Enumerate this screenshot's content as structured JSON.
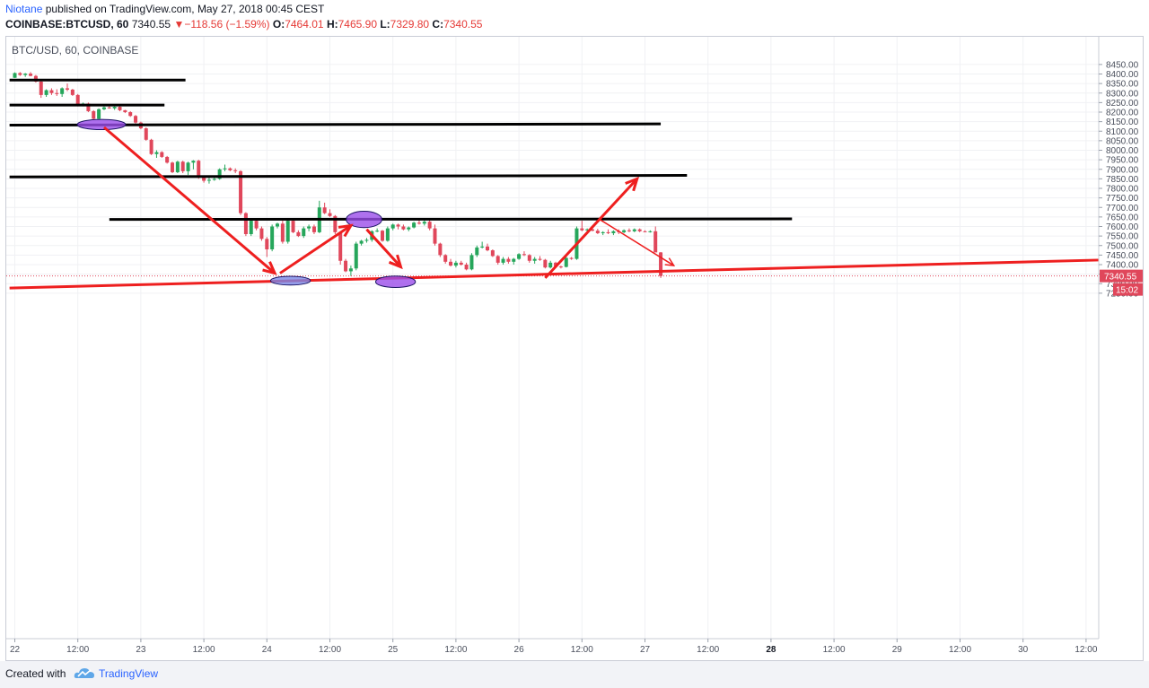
{
  "header": {
    "author": "Niotane",
    "published": "published on TradingView.com, May 27, 2018 00:45 CEST",
    "symbol": "COINBASE:BTCUSD, 60",
    "last": "7340.55",
    "change": "−118.56 (−1.59%)",
    "o_label": "O:",
    "o_value": "7464.01",
    "h_label": "H:",
    "h_value": "7465.90",
    "l_label": "L:",
    "l_value": "7329.80",
    "c_label": "C:",
    "c_value": "7340.55"
  },
  "legend": "BTC/USD, 60, COINBASE",
  "footer": {
    "created_with": "Created with",
    "brand": "TradingView"
  },
  "colors": {
    "up": "#26a65b",
    "down": "#e0475b",
    "drawing_red": "#ee1f1f",
    "hline": "#000000",
    "ellipse_purple": "#9b4dea",
    "ellipse_blue": "#7b87e6",
    "price_tag": "#e0475b"
  },
  "chart_data": {
    "type": "candlestick",
    "symbol": "BTC/USD",
    "interval": "60",
    "exchange": "COINBASE",
    "ylim": [
      7200,
      8470
    ],
    "y_ticks": [
      7250,
      7300,
      7350,
      7400,
      7450,
      7500,
      7550,
      7600,
      7650,
      7700,
      7750,
      7800,
      7850,
      7900,
      7950,
      8000,
      8050,
      8100,
      8150,
      8200,
      8250,
      8300,
      8350,
      8400,
      8450
    ],
    "y_tick_labels": [
      "7250.00",
      "7300.00",
      "7350.00",
      "7400.00",
      "7450.00",
      "7500.00",
      "7550.00",
      "7600.00",
      "7650.00",
      "7700.00",
      "7750.00",
      "7800.00",
      "7850.00",
      "7900.00",
      "7950.00",
      "8000.00",
      "8050.00",
      "8100.00",
      "8150.00",
      "8200.00",
      "8250.00",
      "8300.00",
      "8350.00",
      "8400.00",
      "8450.00"
    ],
    "x_ticks": [
      {
        "t": 0,
        "label": "22",
        "bold": false
      },
      {
        "t": 12,
        "label": "12:00",
        "bold": false
      },
      {
        "t": 24,
        "label": "23",
        "bold": false
      },
      {
        "t": 36,
        "label": "12:00",
        "bold": false
      },
      {
        "t": 48,
        "label": "24",
        "bold": false
      },
      {
        "t": 60,
        "label": "12:00",
        "bold": false
      },
      {
        "t": 72,
        "label": "25",
        "bold": false
      },
      {
        "t": 84,
        "label": "12:00",
        "bold": false
      },
      {
        "t": 96,
        "label": "26",
        "bold": false
      },
      {
        "t": 108,
        "label": "12:00",
        "bold": false
      },
      {
        "t": 120,
        "label": "27",
        "bold": false
      },
      {
        "t": 132,
        "label": "12:00",
        "bold": false
      },
      {
        "t": 144,
        "label": "28",
        "bold": true
      },
      {
        "t": 156,
        "label": "12:00",
        "bold": false
      },
      {
        "t": 168,
        "label": "29",
        "bold": false
      },
      {
        "t": 180,
        "label": "12:00",
        "bold": false
      },
      {
        "t": 192,
        "label": "30",
        "bold": false
      },
      {
        "t": 204,
        "label": "12:00",
        "bold": false
      }
    ],
    "x_range": [
      -1,
      208
    ],
    "candles": [
      [
        8380,
        8408,
        8380,
        8405
      ],
      [
        8405,
        8410,
        8390,
        8395
      ],
      [
        8395,
        8405,
        8385,
        8402
      ],
      [
        8402,
        8410,
        8388,
        8390
      ],
      [
        8390,
        8395,
        8355,
        8360
      ],
      [
        8360,
        8365,
        8275,
        8290
      ],
      [
        8290,
        8320,
        8280,
        8315
      ],
      [
        8315,
        8325,
        8290,
        8300
      ],
      [
        8300,
        8320,
        8285,
        8295
      ],
      [
        8295,
        8330,
        8280,
        8325
      ],
      [
        8325,
        8350,
        8310,
        8318
      ],
      [
        8318,
        8322,
        8285,
        8290
      ],
      [
        8290,
        8295,
        8230,
        8235
      ],
      [
        8235,
        8250,
        8230,
        8245
      ],
      [
        8245,
        8250,
        8200,
        8205
      ],
      [
        8205,
        8210,
        8160,
        8165
      ],
      [
        8165,
        8220,
        8160,
        8215
      ],
      [
        8215,
        8230,
        8210,
        8225
      ],
      [
        8225,
        8232,
        8218,
        8220
      ],
      [
        8220,
        8230,
        8212,
        8228
      ],
      [
        8228,
        8232,
        8205,
        8210
      ],
      [
        8210,
        8212,
        8195,
        8200
      ],
      [
        8200,
        8205,
        8175,
        8180
      ],
      [
        8180,
        8185,
        8140,
        8145
      ],
      [
        8145,
        8150,
        8110,
        8115
      ],
      [
        8115,
        8120,
        8050,
        8055
      ],
      [
        8055,
        8060,
        7975,
        7980
      ],
      [
        7980,
        8000,
        7960,
        7990
      ],
      [
        7990,
        7995,
        7960,
        7965
      ],
      [
        7965,
        7970,
        7930,
        7935
      ],
      [
        7935,
        7940,
        7880,
        7885
      ],
      [
        7885,
        7945,
        7880,
        7940
      ],
      [
        7940,
        7945,
        7880,
        7890
      ],
      [
        7890,
        7940,
        7870,
        7935
      ],
      [
        7935,
        7948,
        7900,
        7945
      ],
      [
        7945,
        7950,
        7850,
        7860
      ],
      [
        7860,
        7865,
        7830,
        7840
      ],
      [
        7840,
        7860,
        7825,
        7845
      ],
      [
        7845,
        7860,
        7840,
        7850
      ],
      [
        7850,
        7905,
        7845,
        7900
      ],
      [
        7900,
        7925,
        7890,
        7905
      ],
      [
        7905,
        7910,
        7890,
        7895
      ],
      [
        7895,
        7905,
        7880,
        7890
      ],
      [
        7890,
        7895,
        7660,
        7670
      ],
      [
        7670,
        7675,
        7550,
        7560
      ],
      [
        7560,
        7640,
        7550,
        7630
      ],
      [
        7630,
        7640,
        7580,
        7590
      ],
      [
        7590,
        7600,
        7525,
        7535
      ],
      [
        7535,
        7545,
        7440,
        7480
      ],
      [
        7480,
        7610,
        7470,
        7600
      ],
      [
        7600,
        7620,
        7590,
        7615
      ],
      [
        7615,
        7630,
        7510,
        7520
      ],
      [
        7520,
        7640,
        7510,
        7630
      ],
      [
        7630,
        7640,
        7565,
        7570
      ],
      [
        7570,
        7580,
        7545,
        7550
      ],
      [
        7550,
        7600,
        7540,
        7590
      ],
      [
        7590,
        7610,
        7575,
        7600
      ],
      [
        7600,
        7610,
        7560,
        7570
      ],
      [
        7570,
        7735,
        7565,
        7700
      ],
      [
        7700,
        7725,
        7665,
        7670
      ],
      [
        7670,
        7690,
        7650,
        7655
      ],
      [
        7655,
        7660,
        7560,
        7570
      ],
      [
        7570,
        7575,
        7400,
        7420
      ],
      [
        7420,
        7430,
        7360,
        7365
      ],
      [
        7365,
        7395,
        7340,
        7380
      ],
      [
        7380,
        7520,
        7370,
        7510
      ],
      [
        7510,
        7530,
        7500,
        7525
      ],
      [
        7525,
        7540,
        7515,
        7530
      ],
      [
        7530,
        7580,
        7520,
        7575
      ],
      [
        7575,
        7590,
        7570,
        7578
      ],
      [
        7578,
        7582,
        7520,
        7525
      ],
      [
        7525,
        7600,
        7520,
        7590
      ],
      [
        7590,
        7615,
        7580,
        7610
      ],
      [
        7610,
        7615,
        7585,
        7600
      ],
      [
        7600,
        7610,
        7580,
        7585
      ],
      [
        7585,
        7600,
        7575,
        7595
      ],
      [
        7595,
        7625,
        7590,
        7620
      ],
      [
        7620,
        7635,
        7610,
        7615
      ],
      [
        7615,
        7640,
        7605,
        7625
      ],
      [
        7625,
        7635,
        7580,
        7590
      ],
      [
        7590,
        7610,
        7500,
        7510
      ],
      [
        7510,
        7515,
        7440,
        7450
      ],
      [
        7450,
        7455,
        7405,
        7415
      ],
      [
        7415,
        7430,
        7390,
        7395
      ],
      [
        7395,
        7420,
        7385,
        7410
      ],
      [
        7410,
        7420,
        7395,
        7400
      ],
      [
        7400,
        7410,
        7370,
        7375
      ],
      [
        7375,
        7460,
        7370,
        7450
      ],
      [
        7450,
        7500,
        7440,
        7490
      ],
      [
        7490,
        7520,
        7485,
        7495
      ],
      [
        7495,
        7510,
        7470,
        7475
      ],
      [
        7475,
        7480,
        7440,
        7445
      ],
      [
        7445,
        7450,
        7400,
        7410
      ],
      [
        7410,
        7440,
        7400,
        7430
      ],
      [
        7430,
        7440,
        7405,
        7415
      ],
      [
        7415,
        7435,
        7400,
        7430
      ],
      [
        7430,
        7460,
        7425,
        7455
      ],
      [
        7455,
        7470,
        7445,
        7450
      ],
      [
        7450,
        7455,
        7410,
        7420
      ],
      [
        7420,
        7440,
        7405,
        7430
      ],
      [
        7430,
        7445,
        7420,
        7425
      ],
      [
        7425,
        7430,
        7380,
        7385
      ],
      [
        7385,
        7420,
        7380,
        7410
      ],
      [
        7410,
        7415,
        7385,
        7390
      ],
      [
        7390,
        7395,
        7380,
        7388
      ],
      [
        7388,
        7440,
        7385,
        7435
      ],
      [
        7435,
        7440,
        7425,
        7430
      ],
      [
        7430,
        7600,
        7425,
        7590
      ],
      [
        7590,
        7630,
        7575,
        7580
      ],
      [
        7580,
        7590,
        7570,
        7585
      ],
      [
        7585,
        7595,
        7575,
        7578
      ],
      [
        7578,
        7588,
        7560,
        7565
      ],
      [
        7565,
        7575,
        7555,
        7570
      ],
      [
        7570,
        7585,
        7560,
        7565
      ],
      [
        7565,
        7580,
        7555,
        7575
      ],
      [
        7575,
        7585,
        7560,
        7570
      ],
      [
        7570,
        7585,
        7565,
        7580
      ],
      [
        7580,
        7590,
        7570,
        7575
      ],
      [
        7575,
        7590,
        7570,
        7585
      ],
      [
        7585,
        7590,
        7570,
        7575
      ],
      [
        7575,
        7580,
        7570,
        7572
      ],
      [
        7572,
        7580,
        7568,
        7575
      ],
      [
        7575,
        7600,
        7470,
        7464
      ],
      [
        7464,
        7466,
        7330,
        7340.55
      ]
    ],
    "hlines": [
      {
        "t0": -1,
        "t1": 32.5,
        "price": 8368
      },
      {
        "t0": -1,
        "t1": 28.5,
        "price": 8237
      },
      {
        "t0": -1,
        "t1": 123,
        "price": 8132,
        "p1": 8138
      },
      {
        "t0": -1,
        "t1": 128,
        "price": 7860,
        "p1": 7868
      },
      {
        "t0": 18,
        "t1": 148,
        "price": 7637,
        "p1": 7640
      }
    ],
    "trendline": {
      "t0": -1,
      "p0": 7277,
      "t1": 208,
      "p1": 7425
    },
    "arrows": [
      {
        "t0": 17,
        "p0": 8120,
        "t1": 49.5,
        "p1": 7355,
        "thin": false
      },
      {
        "t0": 50.5,
        "p0": 7355,
        "t1": 64,
        "p1": 7605,
        "thin": false
      },
      {
        "t0": 67,
        "p0": 7585,
        "t1": 73.5,
        "p1": 7388,
        "thin": false
      },
      {
        "t0": 101,
        "p0": 7330,
        "t1": 118.5,
        "p1": 7850,
        "thin": false
      },
      {
        "t0": 111.5,
        "p0": 7635,
        "t1": 125.5,
        "p1": 7395,
        "thin": true
      }
    ],
    "ellipses": [
      {
        "t": 16.5,
        "price": 8135,
        "rt": 4.6,
        "rp": 27,
        "color": "purple"
      },
      {
        "t": 52.5,
        "price": 7316,
        "rt": 3.8,
        "rp": 23,
        "color": "blue"
      },
      {
        "t": 66.5,
        "price": 7637,
        "rt": 3.4,
        "rp": 43,
        "color": "purple"
      },
      {
        "t": 72.5,
        "price": 7310,
        "rt": 3.8,
        "rp": 30,
        "color": "purple"
      }
    ],
    "last_price": "7340.55",
    "countdown": "15:02"
  }
}
